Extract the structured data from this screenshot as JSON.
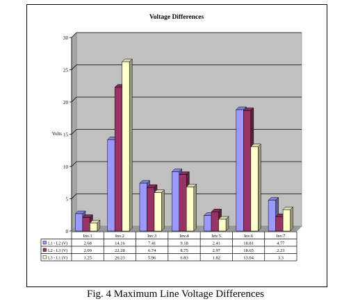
{
  "chart_data": {
    "type": "bar",
    "title": "Voltage Differences",
    "ylabel": "Volts",
    "xlabel": "",
    "ylim": [
      0,
      30
    ],
    "yticks": [
      0,
      5,
      10,
      15,
      20,
      25,
      30
    ],
    "grid": true,
    "legend": "in data table",
    "categories": [
      "Inv.1",
      "Inv.2",
      "Inv.3",
      "Inv.4",
      "Inv.5",
      "Inv.6",
      "Inv.7"
    ],
    "series": [
      {
        "name": "L1 - L2 (V)",
        "color": "#9999ff",
        "values": [
          2.68,
          14.16,
          7.41,
          9.18,
          2.41,
          18.81,
          4.77
        ]
      },
      {
        "name": "L2 - L3 (V)",
        "color": "#993366",
        "values": [
          2.09,
          22.28,
          6.74,
          8.75,
          2.97,
          18.65,
          2.23
        ]
      },
      {
        "name": "L3 - L1 (V)",
        "color": "#ffffcc",
        "values": [
          1.25,
          26.23,
          5.96,
          6.83,
          1.82,
          13.04,
          3.3
        ]
      }
    ],
    "table_rows": [
      [
        "2.68",
        "14.16",
        "7.41",
        "9.18",
        "2.41",
        "18.81",
        "4.77"
      ],
      [
        "2.09",
        "22.28",
        "6.74",
        "8.75",
        "2.97",
        "18.65",
        "2.23"
      ],
      [
        "1.25",
        "26.23",
        "5.96",
        "6.83",
        "1.82",
        "13.04",
        "3.3"
      ]
    ]
  },
  "caption": "Fig. 4 Maximum Line Voltage Differences"
}
